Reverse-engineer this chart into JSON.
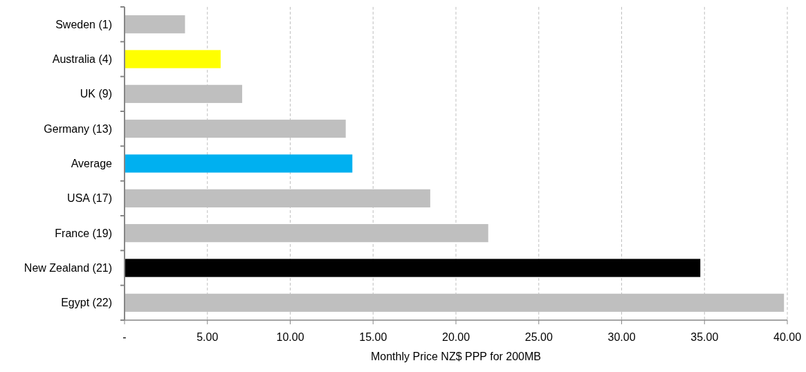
{
  "chart_data": {
    "type": "bar",
    "orientation": "horizontal",
    "xlabel": "Monthly Price NZ$  PPP for 200MB",
    "categories": [
      "Sweden (1)",
      "Australia (4)",
      "UK (9)",
      "Germany (13)",
      "Average",
      "USA (17)",
      "France (19)",
      "New Zealand  (21)",
      "Egypt (22)"
    ],
    "values": [
      3.65,
      5.8,
      7.1,
      13.35,
      13.75,
      18.45,
      21.95,
      34.75,
      39.8
    ],
    "colors": [
      "#bfbfbf",
      "#ffff00",
      "#bfbfbf",
      "#bfbfbf",
      "#00b0f0",
      "#bfbfbf",
      "#bfbfbf",
      "#000000",
      "#bfbfbf"
    ],
    "xlim": [
      0,
      40
    ],
    "xticks": [
      {
        "value": 0,
        "label": "-"
      },
      {
        "value": 5,
        "label": "5.00"
      },
      {
        "value": 10,
        "label": "10.00"
      },
      {
        "value": 15,
        "label": "15.00"
      },
      {
        "value": 20,
        "label": "20.00"
      },
      {
        "value": 25,
        "label": "25.00"
      },
      {
        "value": 30,
        "label": "30.00"
      },
      {
        "value": 35,
        "label": "35.00"
      },
      {
        "value": 40,
        "label": "40.00"
      }
    ],
    "grid": "x"
  }
}
